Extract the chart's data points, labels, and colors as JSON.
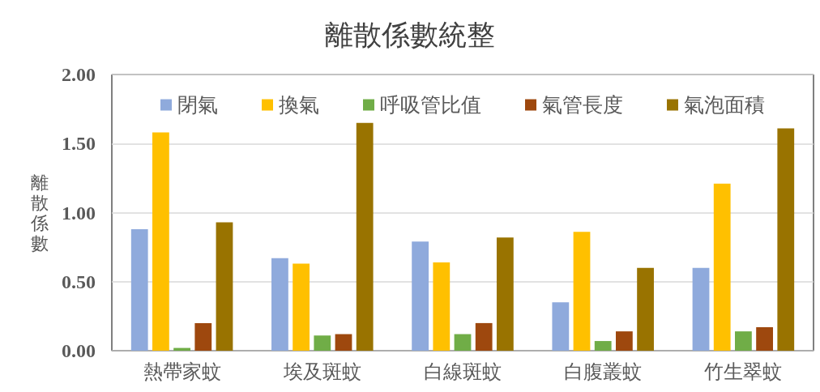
{
  "chart_data": {
    "type": "bar",
    "title": "離散係數統整",
    "ylabel": "離散係數",
    "categories": [
      "熱帶家蚊",
      "埃及斑蚊",
      "白線斑蚊",
      "白腹叢蚊",
      "竹生翠蚊"
    ],
    "series": [
      {
        "name": "閉氣",
        "color": "#8faadc",
        "values": [
          0.88,
          0.67,
          0.79,
          0.35,
          0.6
        ]
      },
      {
        "name": "換氣",
        "color": "#ffc000",
        "values": [
          1.58,
          0.63,
          0.64,
          0.86,
          1.21
        ]
      },
      {
        "name": "呼吸管比值",
        "color": "#70ad47",
        "values": [
          0.02,
          0.11,
          0.12,
          0.07,
          0.14
        ]
      },
      {
        "name": "氣管長度",
        "color": "#9e480e",
        "values": [
          0.2,
          0.12,
          0.2,
          0.14,
          0.17
        ]
      },
      {
        "name": "氣泡面積",
        "color": "#997300",
        "values": [
          0.93,
          1.65,
          0.82,
          0.6,
          1.61
        ]
      }
    ],
    "ylim": [
      0,
      2
    ],
    "yticks": [
      {
        "value": 0,
        "label": "0.00"
      },
      {
        "value": 0.5,
        "label": "0.50"
      },
      {
        "value": 1,
        "label": "1.00"
      },
      {
        "value": 1.5,
        "label": "1.50"
      },
      {
        "value": 2,
        "label": "2.00"
      }
    ],
    "grid": "y",
    "legend": "top"
  }
}
